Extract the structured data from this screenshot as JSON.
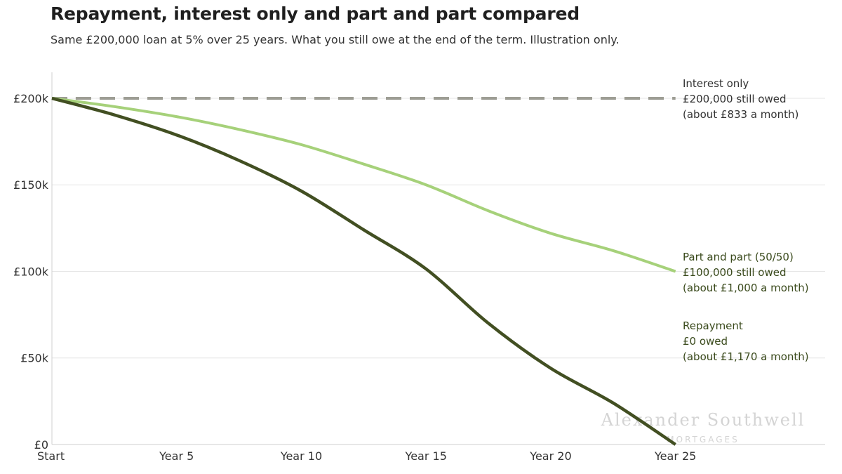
{
  "chart_data": {
    "type": "line",
    "title": "Repayment, interest only and part and part compared",
    "subtitle": "Same £200,000 loan at 5% over 25 years. What you still owe at the end of the term. Illustration only.",
    "x": [
      0,
      2.5,
      5,
      7.5,
      10,
      12.5,
      15,
      17.5,
      20,
      22.5,
      25
    ],
    "x_ticks": [
      {
        "value": 0,
        "label": "Start"
      },
      {
        "value": 5,
        "label": "Year 5"
      },
      {
        "value": 10,
        "label": "Year 10"
      },
      {
        "value": 15,
        "label": "Year 15"
      },
      {
        "value": 20,
        "label": "Year 20"
      },
      {
        "value": 25,
        "label": "Year 25"
      }
    ],
    "y_ticks": [
      {
        "value": 0,
        "label": "£0"
      },
      {
        "value": 50000,
        "label": "£50k"
      },
      {
        "value": 100000,
        "label": "£100k"
      },
      {
        "value": 150000,
        "label": "£150k"
      },
      {
        "value": 200000,
        "label": "£200k"
      }
    ],
    "xlim": [
      0,
      31
    ],
    "ylim": [
      0,
      215000
    ],
    "grid": true,
    "series": [
      {
        "name": "Interest only",
        "style": "dashed",
        "color": "#9d9d94",
        "values": [
          200000,
          200000,
          200000,
          200000,
          200000,
          200000,
          200000,
          200000,
          200000,
          200000,
          200000
        ],
        "labels": [
          "Interest only",
          "£200,000 still owed",
          "(about £833 a month)"
        ],
        "label_color": "#333333"
      },
      {
        "name": "Part and part (50/50)",
        "style": "solid",
        "color": "#a6d17a",
        "values": [
          200000,
          195200,
          189400,
          182000,
          173200,
          162000,
          150000,
          135000,
          122000,
          112000,
          100000
        ],
        "labels": [
          "Part and part (50/50)",
          "£100,000 still owed",
          "(about £1,000 a month)"
        ],
        "label_color": "#3a4a1c"
      },
      {
        "name": "Repayment",
        "style": "solid",
        "color": "#424f22",
        "values": [
          200000,
          190400,
          178800,
          164100,
          146400,
          124000,
          101400,
          70000,
          44000,
          24000,
          0
        ],
        "labels": [
          "Repayment",
          "£0 owed",
          "(about £1,170 a month)"
        ],
        "label_color": "#3a4a1c"
      }
    ]
  },
  "watermark": {
    "name": "Alexander Southwell",
    "sub": "MORTGAGES"
  }
}
